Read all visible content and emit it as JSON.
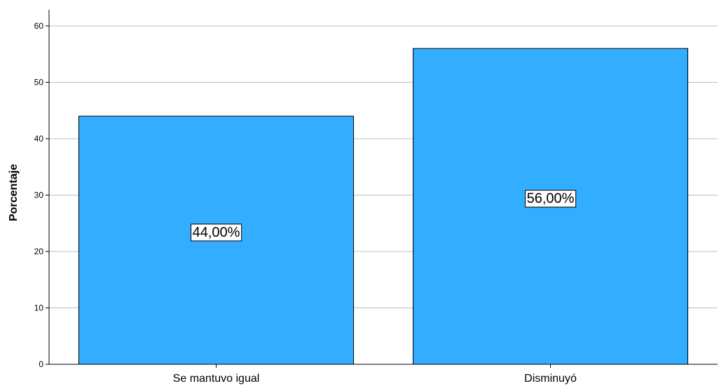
{
  "chart_data": {
    "type": "bar",
    "categories": [
      "Se mantuvo igual",
      "Disminuyó"
    ],
    "values": [
      44,
      56
    ],
    "data_labels": [
      "44,00%",
      "56,00%"
    ],
    "ylabel": "Porcentaje",
    "xlabel": "",
    "ylim": [
      0,
      60
    ],
    "yticks": [
      0,
      10,
      20,
      30,
      40,
      50,
      60
    ],
    "grid": true,
    "bar_color": "#33adff",
    "bar_edge_color": "#000000",
    "grid_color": "#bfbfbf"
  }
}
